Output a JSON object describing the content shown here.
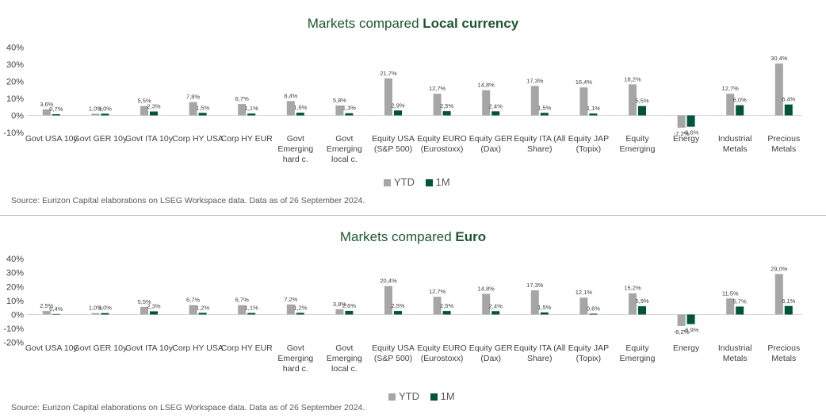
{
  "colors": {
    "ytd": "#a6a6a6",
    "m1": "#00543c",
    "title_accent": "#1e5631"
  },
  "chart_data": [
    {
      "type": "bar",
      "title_prefix": "Markets compared ",
      "title_bold": "Local currency",
      "source": "Source: Eurizon Capital elaborations on LSEG Workspace data. Data as of  26 September 2024.",
      "ylim": [
        -10,
        40
      ],
      "y_ticks": [
        "40%",
        "30%",
        "20%",
        "10%",
        "0%",
        "-10%"
      ],
      "y_tick_values": [
        40,
        30,
        20,
        10,
        0,
        -10
      ],
      "grid": false,
      "legend_position": "bottom",
      "categories": [
        "Govt USA 10y",
        "Govt GER 10y",
        "Govt ITA 10y",
        "Corp HY USA",
        "Corp HY EUR",
        "Govt Emerging hard c.",
        "Govt Emerging local c.",
        "Equity USA (S&P 500)",
        "Equity EURO (Eurostoxx)",
        "Equity GER (Dax)",
        "Equity ITA (All Share)",
        "Equity JAP (Topix)",
        "Equity Emerging",
        "Energy",
        "Industrial Metals",
        "Precious Metals"
      ],
      "category_lines": [
        [
          "Govt USA 10y"
        ],
        [
          "Govt GER 10y"
        ],
        [
          "Govt ITA 10y"
        ],
        [
          "Corp HY USA"
        ],
        [
          "Corp HY EUR"
        ],
        [
          "Govt",
          "Emerging",
          "hard c."
        ],
        [
          "Govt",
          "Emerging",
          "local c."
        ],
        [
          "Equity USA",
          "(S&P 500)"
        ],
        [
          "Equity EURO",
          "(Eurostoxx)"
        ],
        [
          "Equity GER",
          "(Dax)"
        ],
        [
          "Equity ITA (All",
          "Share)"
        ],
        [
          "Equity JAP",
          "(Topix)"
        ],
        [
          "Equity",
          "Emerging"
        ],
        [
          "Energy"
        ],
        [
          "Industrial",
          "Metals"
        ],
        [
          "Precious",
          "Metals"
        ]
      ],
      "series": [
        {
          "name": "YTD",
          "values": [
            3.6,
            1.0,
            5.5,
            7.8,
            6.7,
            8.4,
            5.8,
            21.7,
            12.7,
            14.8,
            17.3,
            16.4,
            18.2,
            -7.2,
            12.7,
            30.4
          ],
          "labels": [
            "3,6%",
            "1,0%",
            "5,5%",
            "7,8%",
            "6,7%",
            "8,4%",
            "5,8%",
            "21,7%",
            "12,7%",
            "14,8%",
            "17,3%",
            "16,4%",
            "18,2%",
            "-7,2%",
            "12,7%",
            "30,4%"
          ]
        },
        {
          "name": "1M",
          "values": [
            0.7,
            1.0,
            2.3,
            1.5,
            1.1,
            1.6,
            1.3,
            2.9,
            2.5,
            2.4,
            1.5,
            1.1,
            5.5,
            -6.6,
            6.0,
            6.4
          ],
          "labels": [
            "0,7%",
            "1,0%",
            "2,3%",
            "1,5%",
            "1,1%",
            "1,6%",
            "1,3%",
            "2,9%",
            "2,5%",
            "2,4%",
            "1,5%",
            "1,1%",
            "5,5%",
            "-6,6%",
            "6,0%",
            "6,4%"
          ]
        }
      ]
    },
    {
      "type": "bar",
      "title_prefix": "Markets compared ",
      "title_bold": "Euro",
      "source": "Source: Eurizon Capital elaborations on LSEG Workspace data. Data as of  26 September 2024.",
      "ylim": [
        -20,
        40
      ],
      "y_ticks": [
        "40%",
        "30%",
        "20%",
        "10%",
        "0%",
        "-10%",
        "-20%"
      ],
      "y_tick_values": [
        40,
        30,
        20,
        10,
        0,
        -10,
        -20
      ],
      "grid": false,
      "legend_position": "bottom",
      "categories": [
        "Govt USA 10y",
        "Govt GER 10y",
        "Govt ITA 10y",
        "Corp HY USA",
        "Corp HY EUR",
        "Govt Emerging hard c.",
        "Govt Emerging local c.",
        "Equity USA (S&P 500)",
        "Equity EURO (Eurostoxx)",
        "Equity GER (Dax)",
        "Equity ITA (All Share)",
        "Equity JAP (Topix)",
        "Equity Emerging",
        "Energy",
        "Industrial Metals",
        "Precious Metals"
      ],
      "category_lines": [
        [
          "Govt USA 10y"
        ],
        [
          "Govt GER 10y"
        ],
        [
          "Govt ITA 10y"
        ],
        [
          "Corp HY USA"
        ],
        [
          "Corp HY EUR"
        ],
        [
          "Govt",
          "Emerging",
          "hard c."
        ],
        [
          "Govt",
          "Emerging",
          "local c."
        ],
        [
          "Equity USA",
          "(S&P 500)"
        ],
        [
          "Equity EURO",
          "(Eurostoxx)"
        ],
        [
          "Equity GER",
          "(Dax)"
        ],
        [
          "Equity ITA (All",
          "Share)"
        ],
        [
          "Equity JAP",
          "(Topix)"
        ],
        [
          "Equity",
          "Emerging"
        ],
        [
          "Energy"
        ],
        [
          "Industrial",
          "Metals"
        ],
        [
          "Precious",
          "Metals"
        ]
      ],
      "series": [
        {
          "name": "YTD",
          "values": [
            2.5,
            1.0,
            5.5,
            6.7,
            6.7,
            7.2,
            3.8,
            20.4,
            12.7,
            14.8,
            17.3,
            12.1,
            15.2,
            -8.2,
            11.5,
            29.0
          ],
          "labels": [
            "2,5%",
            "1,0%",
            "5,5%",
            "6,7%",
            "6,7%",
            "7,2%",
            "3,8%",
            "20,4%",
            "12,7%",
            "14,8%",
            "17,3%",
            "12,1%",
            "15,2%",
            "-8,2%",
            "11,5%",
            "29,0%"
          ]
        },
        {
          "name": "1M",
          "values": [
            0.4,
            1.0,
            2.3,
            1.2,
            1.1,
            1.2,
            2.6,
            2.5,
            2.5,
            2.4,
            1.5,
            0.6,
            5.9,
            -6.9,
            5.7,
            6.1
          ],
          "labels": [
            "0,4%",
            "1,0%",
            "2,3%",
            "1,2%",
            "1,1%",
            "1,2%",
            "2,6%",
            "2,5%",
            "2,5%",
            "2,4%",
            "1,5%",
            "0,6%",
            "5,9%",
            "-6,9%",
            "5,7%",
            "6,1%"
          ]
        }
      ]
    }
  ]
}
